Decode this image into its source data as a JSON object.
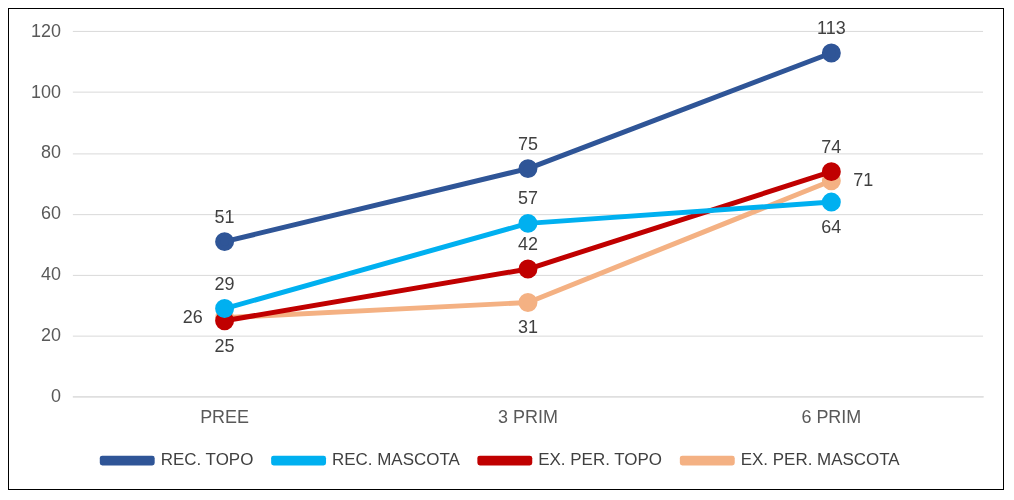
{
  "chart_data": {
    "type": "line",
    "categories": [
      "PREE",
      "3 PRIM",
      "6 PRIM"
    ],
    "series": [
      {
        "name": "REC. TOPO",
        "color": "#2f5597",
        "values": [
          51,
          75,
          113
        ]
      },
      {
        "name": "REC. MASCOTA",
        "color": "#00b0f0",
        "values": [
          29,
          57,
          64
        ]
      },
      {
        "name": "EX. PER. TOPO",
        "color": "#c00000",
        "values": [
          25,
          42,
          74
        ]
      },
      {
        "name": "EX. PER. MASCOTA",
        "color": "#f4b183",
        "values": [
          26,
          31,
          71
        ]
      }
    ],
    "ylim": [
      0,
      120
    ],
    "yticks": [
      0,
      20,
      40,
      60,
      80,
      100,
      120
    ],
    "grid": "y",
    "legend": "bottom",
    "marker": "circle",
    "line_style": "solid",
    "data_labels": true
  }
}
